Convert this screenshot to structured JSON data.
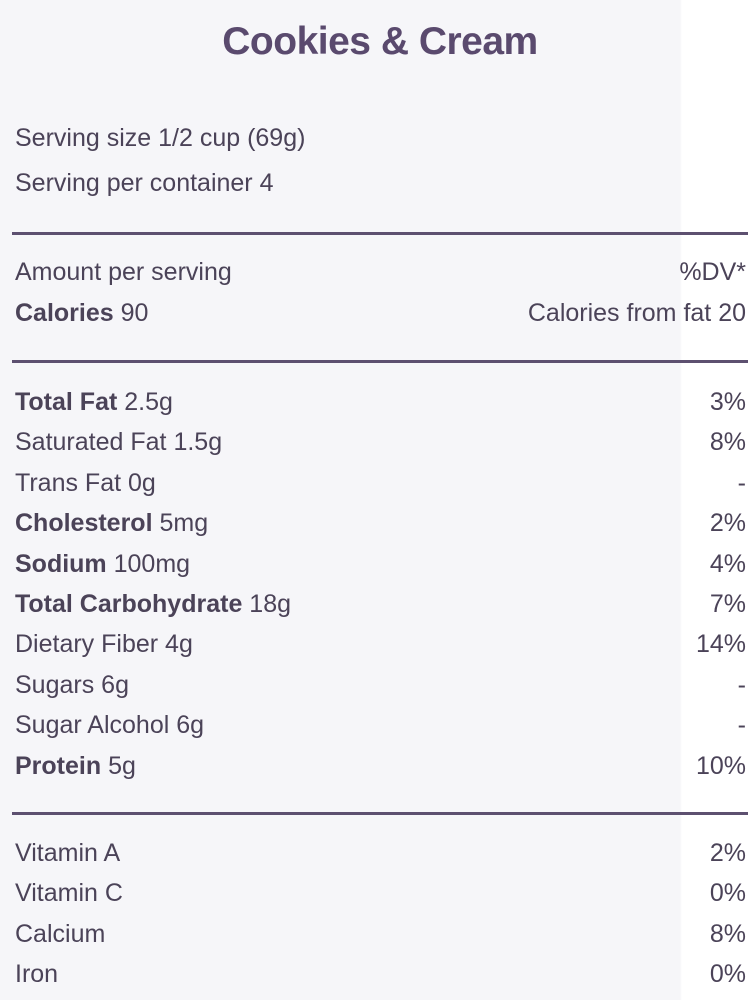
{
  "title": "Cookies & Cream",
  "serving_size": "Serving size 1/2 cup (69g)",
  "servings_per_container": "Serving per container 4",
  "amount_per_serving": "Amount per serving",
  "dv_header": "%DV*",
  "calories": {
    "label": "Calories",
    "value": "90",
    "from_fat": "Calories from fat 20"
  },
  "nutrients": [
    {
      "label": "Total Fat",
      "amount": "2.5g",
      "dv": "3%",
      "bold": true
    },
    {
      "label": "Saturated Fat",
      "amount": "1.5g",
      "dv": "8%",
      "bold": false
    },
    {
      "label": "Trans Fat",
      "amount": "0g",
      "dv": "-",
      "bold": false
    },
    {
      "label": "Cholesterol",
      "amount": "5mg",
      "dv": "2%",
      "bold": true
    },
    {
      "label": "Sodium",
      "amount": "100mg",
      "dv": "4%",
      "bold": true
    },
    {
      "label": "Total Carbohydrate",
      "amount": "18g",
      "dv": "7%",
      "bold": true
    },
    {
      "label": "Dietary Fiber",
      "amount": "4g",
      "dv": "14%",
      "bold": false
    },
    {
      "label": "Sugars",
      "amount": "6g",
      "dv": "-",
      "bold": false
    },
    {
      "label": "Sugar Alcohol",
      "amount": "6g",
      "dv": "-",
      "bold": false
    },
    {
      "label": "Protein",
      "amount": "5g",
      "dv": "10%",
      "bold": true
    }
  ],
  "vitamins": [
    {
      "label": "Vitamin A",
      "dv": "2%"
    },
    {
      "label": "Vitamin C",
      "dv": "0%"
    },
    {
      "label": "Calcium",
      "dv": "8%"
    },
    {
      "label": "Iron",
      "dv": "0%"
    }
  ]
}
